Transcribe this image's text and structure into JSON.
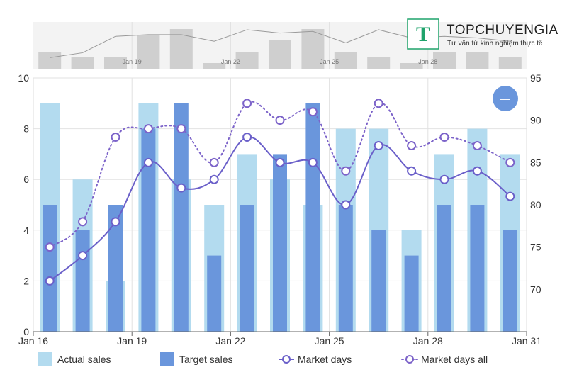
{
  "chart_data": {
    "type": "bar",
    "x_tick_labels": [
      "Jan 16",
      "Jan 19",
      "Jan 22",
      "Jan 25",
      "Jan 28",
      "Jan 31"
    ],
    "x": [
      "Jan 16",
      "Jan 17",
      "Jan 18",
      "Jan 19",
      "Jan 20",
      "Jan 21",
      "Jan 22",
      "Jan 23",
      "Jan 24",
      "Jan 25",
      "Jan 26",
      "Jan 27",
      "Jan 28",
      "Jan 29",
      "Jan 30"
    ],
    "left_axis": {
      "min": 0,
      "max": 10,
      "ticks": [
        0,
        2,
        4,
        6,
        8,
        10
      ]
    },
    "right_axis": {
      "min": 65,
      "max": 95,
      "ticks": [
        70,
        75,
        80,
        85,
        90,
        95
      ]
    },
    "series": [
      {
        "name": "Actual sales",
        "type": "bar",
        "axis": "left",
        "color": "#b3dbef",
        "values": [
          9,
          6,
          2,
          9,
          6,
          5,
          7,
          6,
          5,
          8,
          8,
          4,
          7,
          8,
          7
        ]
      },
      {
        "name": "Target sales",
        "type": "bar",
        "axis": "left",
        "color": "#6a96dc",
        "values": [
          5,
          4,
          5,
          8,
          9,
          3,
          5,
          7,
          9,
          5,
          4,
          3,
          5,
          5,
          4
        ]
      },
      {
        "name": "Market days",
        "type": "line",
        "style": "solid",
        "axis": "right",
        "color": "#6a5fc9",
        "values": [
          71,
          74,
          78,
          85,
          82,
          83,
          88,
          85,
          85,
          80,
          87,
          84,
          83,
          84,
          81
        ]
      },
      {
        "name": "Market days all",
        "type": "line",
        "style": "dotted",
        "axis": "right",
        "color": "#7c63c9",
        "values": [
          75,
          78,
          88,
          89,
          89,
          85,
          92,
          90,
          91,
          84,
          92,
          87,
          88,
          87,
          85
        ]
      }
    ],
    "navigator": {
      "bar_values": [
        3,
        2,
        2,
        6,
        7,
        1,
        3,
        5,
        7,
        3,
        2,
        1,
        3,
        3,
        2
      ],
      "tick_labels": [
        "Jan 19",
        "Jan 22",
        "Jan 25",
        "Jan 28"
      ]
    },
    "grid": true,
    "legend_position": "bottom"
  },
  "zoom_button": {
    "symbol": "—",
    "color": "#6a96dc"
  },
  "logo": {
    "letter": "T",
    "name": "TOPCHUYENGIA",
    "tagline": "Tư vấn từ kinh nghiệm thực tế",
    "color": "#1fa36b"
  }
}
